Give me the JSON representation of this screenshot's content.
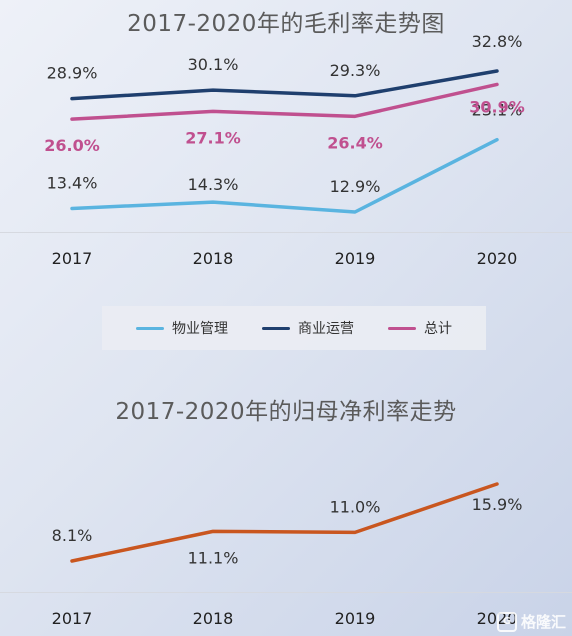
{
  "chart_data": [
    {
      "type": "line",
      "title": "2017-2020年的毛利率走势图",
      "categories": [
        "2017",
        "2018",
        "2019",
        "2020"
      ],
      "series": [
        {
          "name": "物业管理",
          "values": [
            13.4,
            14.3,
            12.9,
            23.1
          ],
          "labels": [
            "13.4%",
            "14.3%",
            "12.9%",
            "23.1%"
          ],
          "color": "#5ab4e0"
        },
        {
          "name": "商业运营",
          "values": [
            28.9,
            30.1,
            29.3,
            32.8
          ],
          "labels": [
            "28.9%",
            "30.1%",
            "29.3%",
            "32.8%"
          ],
          "color": "#1f3f6e"
        },
        {
          "name": "总计",
          "values": [
            26.0,
            27.1,
            26.4,
            30.9
          ],
          "labels": [
            "26.0%",
            "27.1%",
            "26.4%",
            "30.9%"
          ],
          "color": "#c0508f"
        }
      ],
      "legend": "bottom"
    },
    {
      "type": "line",
      "title": "2017-2020年的归母净利率走势",
      "categories": [
        "2017",
        "2018",
        "2019",
        "2020"
      ],
      "series": [
        {
          "values": [
            8.1,
            11.1,
            11.0,
            15.9
          ],
          "labels": [
            "8.1%",
            "11.1%",
            "11.0%",
            "15.9%"
          ],
          "color": "#c9561f"
        }
      ],
      "legend": "none"
    }
  ],
  "watermark": {
    "text": "格隆汇",
    "icon": "g-logo-icon"
  }
}
